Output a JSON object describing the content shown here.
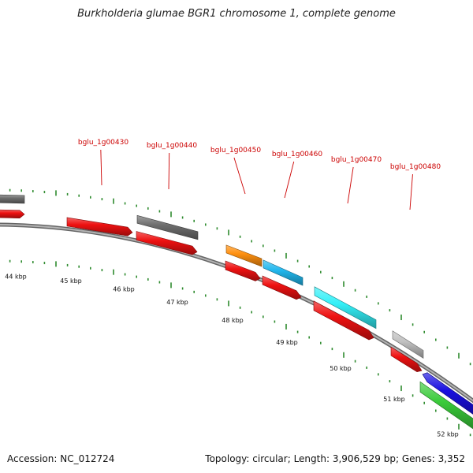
{
  "title": "Burkholderia glumae BGR1 chromosome 1, complete genome",
  "footer": {
    "accession_label": "Accession:",
    "accession": "NC_012724",
    "topology_label": "Topology:",
    "topology": "circular",
    "length_label": "Length:",
    "length": "3,906,529 bp",
    "genes_label": "Genes:",
    "genes": "3,352"
  },
  "map": {
    "backbone_color": "#808080",
    "tick_color": "#2e8b2e",
    "label_color": "#cc0000",
    "scale_unit": "kbp",
    "scale_labels": [
      "44 kbp",
      "45 kbp",
      "46 kbp",
      "47 kbp",
      "48 kbp",
      "49 kbp",
      "50 kbp",
      "51 kbp",
      "52 kbp"
    ],
    "gene_labels": [
      "bglu_1g00430",
      "bglu_1g00440",
      "bglu_1g00450",
      "bglu_1g00460",
      "bglu_1g00470",
      "bglu_1g00480"
    ],
    "feature_colors": {
      "cds": "#ee1111",
      "gray_gene": "#6e6e6e",
      "orange_gene": "#ff9010",
      "sky_gene": "#22b8ee",
      "cyan_gene": "#33f0f8",
      "light_gray_gene": "#c0c0c0",
      "blue_gene": "#1a10e0",
      "green_gene": "#3acb3a"
    }
  }
}
